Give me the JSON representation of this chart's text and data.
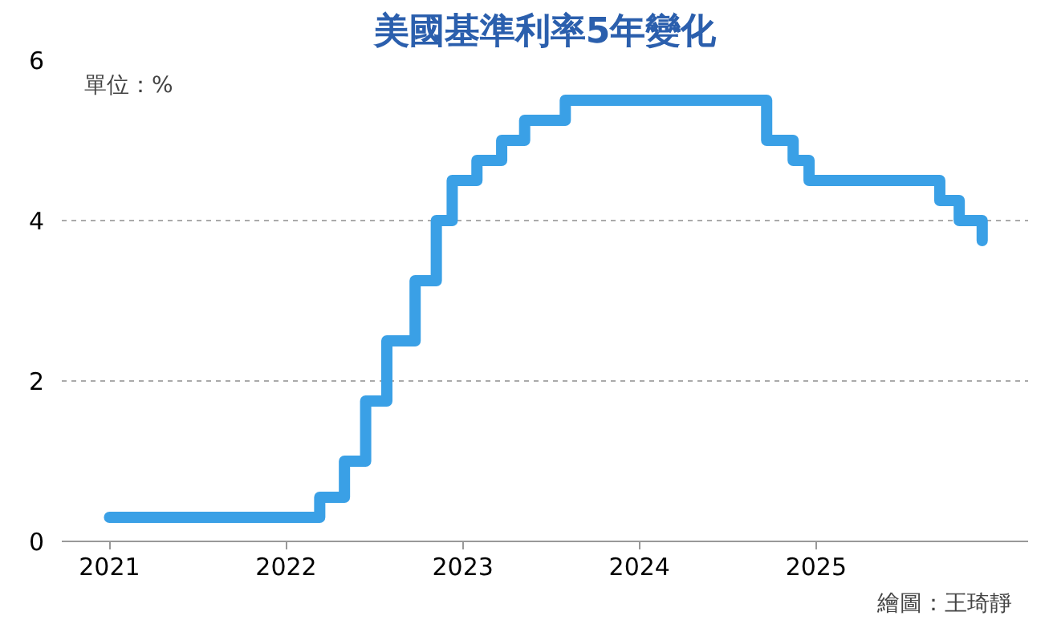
{
  "chart_data": {
    "type": "step",
    "title": "美國基準利率5年變化",
    "ylabel": "單位：%",
    "annotations": [
      "繪圖：王琦靜"
    ],
    "x": [
      2021.0,
      2022.19,
      2022.33,
      2022.45,
      2022.57,
      2022.73,
      2022.85,
      2022.94,
      2023.08,
      2023.22,
      2023.35,
      2023.58,
      2024.72,
      2024.87,
      2024.96,
      2025.7,
      2025.81,
      2025.94
    ],
    "series": [
      {
        "color": "#3aa0e6",
        "values": [
          0.3,
          0.55,
          1.0,
          1.75,
          2.5,
          3.25,
          4.0,
          4.5,
          4.75,
          5.0,
          5.25,
          5.5,
          5.0,
          4.75,
          4.5,
          4.25,
          4.0,
          3.75
        ]
      }
    ],
    "xlim": [
      2020.73,
      2026.2
    ],
    "xticks": [
      2021,
      2022,
      2023,
      2024,
      2025
    ],
    "ylim": [
      0,
      6
    ],
    "yticks": [
      0,
      2,
      4,
      6
    ],
    "grid": "y",
    "marker": "none",
    "line_style": "solid"
  }
}
